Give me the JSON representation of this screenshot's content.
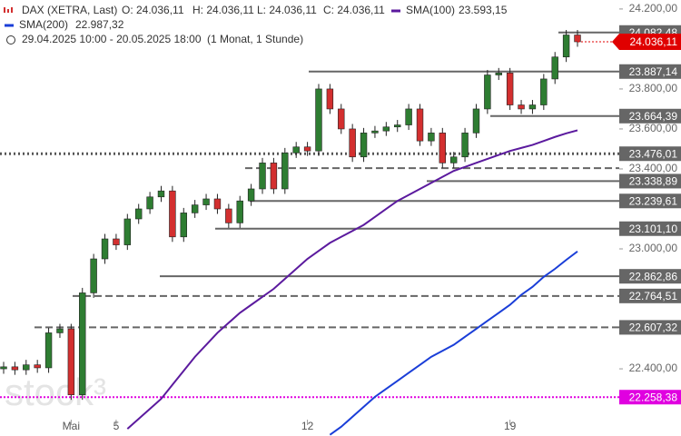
{
  "chart_data": {
    "type": "candlestick",
    "header": {
      "symbol": "DAX (XETRA, Last)",
      "open": "O: 24.036,11",
      "high": "H: 24.036,11",
      "low": "L: 24.036,11",
      "close": "C: 24.036,11",
      "range": "29.04.2025 10:00 - 20.05.2025 18:00",
      "interval": "(1 Monat, 1 Stunde)"
    },
    "watermark": "stock³",
    "categories": [
      null,
      null,
      null,
      null,
      null,
      null,
      "Mai",
      null,
      null,
      null,
      "5",
      null,
      null,
      null,
      null,
      null,
      null,
      null,
      null,
      null,
      null,
      null,
      null,
      null,
      null,
      null,
      null,
      "12",
      null,
      null,
      null,
      null,
      null,
      null,
      null,
      null,
      null,
      null,
      null,
      null,
      null,
      null,
      null,
      null,
      null,
      "19",
      null,
      null,
      null,
      null,
      null,
      null
    ],
    "open": [
      22400,
      22410,
      22395,
      22420,
      22405,
      22580,
      22600,
      22270,
      22780,
      22950,
      23050,
      23020,
      23150,
      23200,
      23260,
      23290,
      23060,
      23180,
      23220,
      23250,
      23200,
      23130,
      23240,
      23300,
      23430,
      23300,
      23480,
      23510,
      23490,
      23800,
      23700,
      23600,
      23460,
      23580,
      23590,
      23610,
      23620,
      23700,
      23540,
      23580,
      23430,
      23460,
      23580,
      23700,
      23870,
      23880,
      23720,
      23700,
      23720,
      23850,
      23960,
      24070
    ],
    "high": [
      22435,
      22435,
      22445,
      22445,
      22605,
      22625,
      22625,
      22805,
      22975,
      23075,
      23075,
      23175,
      23225,
      23285,
      23315,
      23315,
      23205,
      23245,
      23275,
      23275,
      23225,
      23265,
      23325,
      23455,
      23455,
      23505,
      23535,
      23535,
      23825,
      23825,
      23725,
      23625,
      23605,
      23615,
      23635,
      23645,
      23725,
      23725,
      23605,
      23605,
      23485,
      23605,
      23725,
      23895,
      23905,
      23905,
      23745,
      23745,
      23875,
      23985,
      24095,
      24095
    ],
    "low": [
      22375,
      22370,
      22370,
      22380,
      22380,
      22555,
      22245,
      22245,
      22755,
      22925,
      22995,
      22995,
      23125,
      23175,
      23235,
      23035,
      23035,
      23155,
      23195,
      23175,
      23105,
      23105,
      23215,
      23275,
      23275,
      23275,
      23455,
      23465,
      23465,
      23675,
      23575,
      23435,
      23435,
      23555,
      23565,
      23585,
      23595,
      23515,
      23515,
      23405,
      23405,
      23435,
      23555,
      23675,
      23845,
      23695,
      23675,
      23675,
      23695,
      23825,
      23935,
      24011
    ],
    "close": [
      22410,
      22395,
      22420,
      22405,
      22580,
      22600,
      22270,
      22780,
      22950,
      23050,
      23020,
      23150,
      23200,
      23260,
      23290,
      23060,
      23180,
      23220,
      23250,
      23200,
      23130,
      23240,
      23300,
      23430,
      23300,
      23480,
      23510,
      23490,
      23800,
      23700,
      23600,
      23460,
      23580,
      23590,
      23610,
      23620,
      23700,
      23540,
      23580,
      23430,
      23460,
      23580,
      23700,
      23870,
      23880,
      23720,
      23700,
      23720,
      23850,
      23960,
      24070,
      24036
    ],
    "up_color": "#2e7d32",
    "down_color": "#d32f2f",
    "series": [
      {
        "name": "SMA(100)",
        "last_label": "23.593,15",
        "color": "#5b1a9e",
        "values": [
          null,
          null,
          null,
          null,
          null,
          null,
          null,
          null,
          null,
          null,
          null,
          22100,
          22150,
          22200,
          22250,
          22320,
          22390,
          22460,
          22520,
          22580,
          22630,
          22680,
          22720,
          22760,
          22800,
          22850,
          22900,
          22950,
          22990,
          23030,
          23060,
          23090,
          23120,
          23160,
          23200,
          23240,
          23270,
          23300,
          23330,
          23360,
          23390,
          23410,
          23430,
          23450,
          23470,
          23490,
          23505,
          23520,
          23540,
          23560,
          23578,
          23593.15
        ]
      },
      {
        "name": "SMA(200)",
        "last_label": "22.987,32",
        "color": "#1a3ed8",
        "values": [
          null,
          null,
          null,
          null,
          null,
          null,
          null,
          null,
          null,
          null,
          null,
          null,
          null,
          null,
          null,
          null,
          null,
          null,
          null,
          null,
          null,
          null,
          null,
          null,
          null,
          null,
          null,
          null,
          null,
          22070,
          22110,
          22160,
          22210,
          22260,
          22300,
          22340,
          22380,
          22420,
          22460,
          22490,
          22520,
          22560,
          22600,
          22640,
          22680,
          22720,
          22770,
          22810,
          22860,
          22900,
          22945,
          22987.32
        ]
      }
    ],
    "ylim": [
      22064,
      24245
    ],
    "yticks": [
      {
        "value": 24200,
        "label": "24.200,00"
      },
      {
        "value": 23800,
        "label": "23.800,00"
      },
      {
        "value": 23600,
        "label": "23.600,00"
      },
      {
        "value": 23400,
        "label": "23.400,00"
      },
      {
        "value": 23000,
        "label": "23.000,00"
      },
      {
        "value": 22400,
        "label": "22.400,00"
      }
    ],
    "levels": [
      {
        "value": 24082.48,
        "label": "24.082,48",
        "style": "solid"
      },
      {
        "value": 23887.14,
        "label": "23.887,14",
        "style": "solid"
      },
      {
        "value": 23664.39,
        "label": "23.664,39",
        "style": "solid"
      },
      {
        "value": 23476.01,
        "label": "23.476,01",
        "style": "dotted"
      },
      {
        "value": 23404,
        "style": "dashed"
      },
      {
        "value": 23338.89,
        "label": "23.338,89",
        "style": "solid"
      },
      {
        "value": 23239.61,
        "label": "23.239,61",
        "style": "solid"
      },
      {
        "value": 23101.1,
        "label": "23.101,10",
        "style": "solid"
      },
      {
        "value": 22862.86,
        "label": "22.862,86",
        "style": "solid"
      },
      {
        "value": 22764.51,
        "label": "22.764,51",
        "style": "dashed"
      },
      {
        "value": 22607.32,
        "label": "22.607,32",
        "style": "dashed"
      },
      {
        "value": 22258.38,
        "label": "22.258,38",
        "style": "magenta"
      }
    ],
    "last": {
      "value": 24036.11,
      "label": "24.036,11",
      "color": "#e00000"
    }
  }
}
